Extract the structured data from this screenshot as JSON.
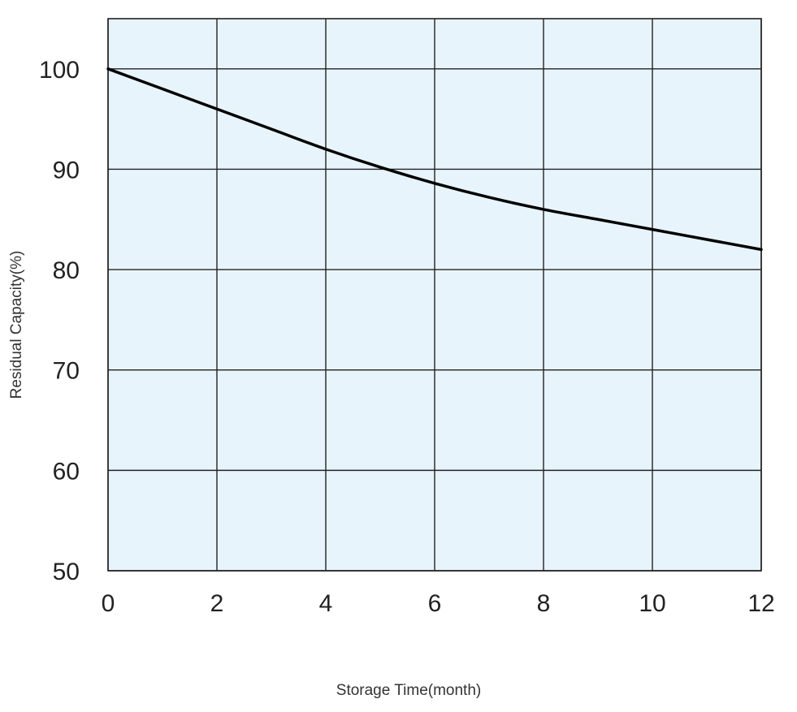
{
  "chart_data": {
    "type": "line",
    "title": "",
    "xlabel": "Storage Time(month)",
    "ylabel": "Residual Capacity(%)",
    "xlim": [
      0,
      12
    ],
    "ylim": [
      50,
      105
    ],
    "x_ticks": [
      0,
      2,
      4,
      6,
      8,
      10,
      12
    ],
    "y_ticks": [
      50,
      60,
      70,
      80,
      90,
      100
    ],
    "grid": true,
    "legend": "none",
    "colors": {
      "plot_background": "#e8f4fc",
      "grid": "#222222",
      "line": "#000000"
    },
    "series": [
      {
        "x": [
          0,
          1,
          2,
          3,
          4,
          5,
          6,
          7,
          8,
          9,
          10,
          11,
          12
        ],
        "values": [
          100,
          98,
          96,
          94,
          92,
          90.2,
          88.6,
          87.2,
          86,
          85,
          84,
          83,
          82
        ]
      }
    ]
  }
}
